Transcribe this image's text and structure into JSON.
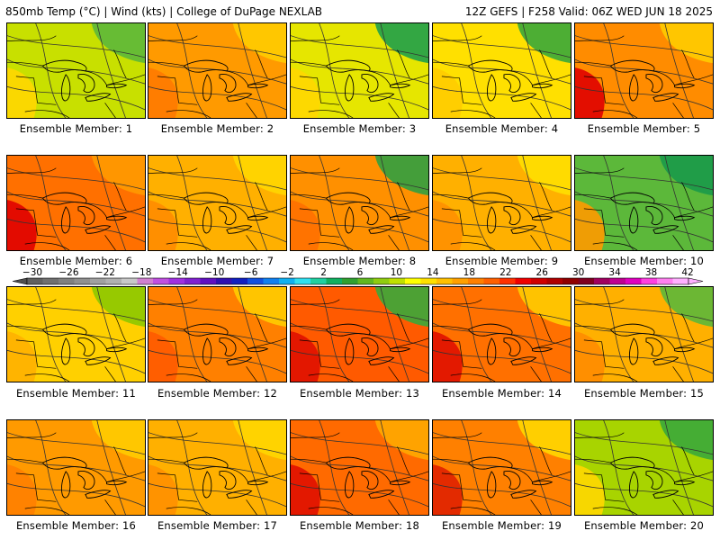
{
  "header": {
    "left": "850mb Temp (°C) | Wind (kts) | College of DuPage NEXLAB",
    "right": "12Z GEFS | F258 Valid: 06Z WED JUN 18 2025"
  },
  "panels": [
    {
      "label": "Ensemble Member: 1",
      "bg": "#c8e000",
      "warm_side": "#ffd700",
      "cool": "#5cb83a"
    },
    {
      "label": "Ensemble Member: 2",
      "bg": "#ff9a00",
      "warm_side": "#ff7a00",
      "cool": "#ffcc00"
    },
    {
      "label": "Ensemble Member: 3",
      "bg": "#e6e600",
      "warm_side": "#ffd700",
      "cool": "#1fa04a"
    },
    {
      "label": "Ensemble Member: 4",
      "bg": "#ffe000",
      "warm_side": "#ffcc00",
      "cool": "#3aa83a"
    },
    {
      "label": "Ensemble Member: 5",
      "bg": "#ff8c00",
      "warm_side": "#e00000",
      "cool": "#ffcc00"
    },
    {
      "label": "Ensemble Member: 6",
      "bg": "#ff7000",
      "warm_side": "#e00000",
      "cool": "#ff9a00"
    },
    {
      "label": "Ensemble Member: 7",
      "bg": "#ffb000",
      "warm_side": "#ff8c00",
      "cool": "#ffd700"
    },
    {
      "label": "Ensemble Member: 8",
      "bg": "#ff9000",
      "warm_side": "#ff7000",
      "cool": "#30a040"
    },
    {
      "label": "Ensemble Member: 9",
      "bg": "#ffb000",
      "warm_side": "#ff9000",
      "cool": "#ffe000"
    },
    {
      "label": "Ensemble Member: 10",
      "bg": "#5cb83a",
      "warm_side": "#ff9a00",
      "cool": "#1a9a4a"
    },
    {
      "label": "Ensemble Member: 11",
      "bg": "#ffd000",
      "warm_side": "#ffb000",
      "cool": "#8cc800"
    },
    {
      "label": "Ensemble Member: 12",
      "bg": "#ff8000",
      "warm_side": "#ff5a00",
      "cool": "#ffcc00"
    },
    {
      "label": "Ensemble Member: 13",
      "bg": "#ff5a00",
      "warm_side": "#e01000",
      "cool": "#3aa83a"
    },
    {
      "label": "Ensemble Member: 14",
      "bg": "#ff7000",
      "warm_side": "#e01000",
      "cool": "#ffcc00"
    },
    {
      "label": "Ensemble Member: 15",
      "bg": "#ffb000",
      "warm_side": "#ff8c00",
      "cool": "#5cb83a"
    },
    {
      "label": "Ensemble Member: 16",
      "bg": "#ff9a00",
      "warm_side": "#ff8000",
      "cool": "#ffcc00"
    },
    {
      "label": "Ensemble Member: 17",
      "bg": "#ffb000",
      "warm_side": "#ff9000",
      "cool": "#ffd700"
    },
    {
      "label": "Ensemble Member: 18",
      "bg": "#ff6a00",
      "warm_side": "#e01000",
      "cool": "#ffaa00"
    },
    {
      "label": "Ensemble Member: 19",
      "bg": "#ff8000",
      "warm_side": "#e02000",
      "cool": "#ffd700"
    },
    {
      "label": "Ensemble Member: 20",
      "bg": "#a8d400",
      "warm_side": "#ffd700",
      "cool": "#3aa83a"
    }
  ],
  "colorbar": {
    "ticks": [
      "−30",
      "−26",
      "−22",
      "−18",
      "−14",
      "−10",
      "−6",
      "−2",
      "2",
      "6",
      "10",
      "14",
      "18",
      "22",
      "26",
      "30",
      "34",
      "38",
      "42"
    ],
    "colors": [
      "#606060",
      "#707070",
      "#808080",
      "#909090",
      "#a0a0a0",
      "#b0b0b0",
      "#c8c8c8",
      "#d080d0",
      "#c050e0",
      "#a030e0",
      "#8020d0",
      "#6010c0",
      "#3010b0",
      "#1020c0",
      "#1050e0",
      "#1080f0",
      "#10b0f0",
      "#30e0f0",
      "#20d0a0",
      "#10b060",
      "#30a030",
      "#60b820",
      "#90cc10",
      "#c0e000",
      "#ffff00",
      "#ffe000",
      "#ffc000",
      "#ffa000",
      "#ff8000",
      "#ff6000",
      "#ff3000",
      "#f00000",
      "#d00000",
      "#b00000",
      "#900000",
      "#800020",
      "#a00060",
      "#c00090",
      "#e000c0",
      "#ff40e0",
      "#ff80f0",
      "#ffb0ff"
    ]
  }
}
